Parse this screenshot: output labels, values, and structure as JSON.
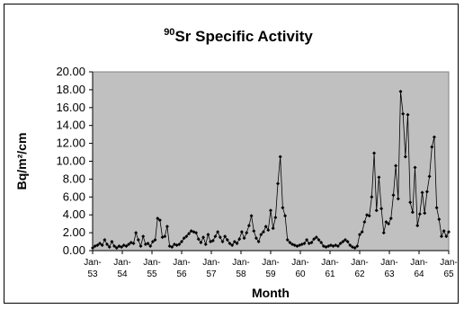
{
  "chart_data": {
    "type": "line",
    "title": {
      "superscript": "90",
      "text": "Sr Specific Activity"
    },
    "xlabel": "Month",
    "ylabel": "Bq/m²/cm",
    "ylim": [
      0,
      20
    ],
    "y_ticks": [
      "0.00",
      "2.00",
      "4.00",
      "6.00",
      "8.00",
      "10.00",
      "12.00",
      "14.00",
      "16.00",
      "18.00",
      "20.00"
    ],
    "x_ticks": [
      {
        "top": "Jan-",
        "bottom": "53"
      },
      {
        "top": "Jan-",
        "bottom": "54"
      },
      {
        "top": "Jan-",
        "bottom": "55"
      },
      {
        "top": "Jan-",
        "bottom": "56"
      },
      {
        "top": "Jan-",
        "bottom": "57"
      },
      {
        "top": "Jan-",
        "bottom": "58"
      },
      {
        "top": "Jan-",
        "bottom": "59"
      },
      {
        "top": "Jan-",
        "bottom": "60"
      },
      {
        "top": "Jan-",
        "bottom": "61"
      },
      {
        "top": "Jan-",
        "bottom": "62"
      },
      {
        "top": "Jan-",
        "bottom": "63"
      },
      {
        "top": "Jan-",
        "bottom": "64"
      },
      {
        "top": "Jan-",
        "bottom": "65"
      }
    ],
    "x_start": "Jan-53",
    "x_end": "Jan-65",
    "grid": false,
    "plot_background": "#c0c0c0",
    "line_color": "#000000",
    "marker": "diamond",
    "series": [
      {
        "values": [
          0.3,
          0.5,
          0.6,
          0.8,
          0.6,
          1.2,
          0.7,
          0.4,
          1.0,
          0.5,
          0.3,
          0.5,
          0.4,
          0.6,
          0.5,
          0.7,
          0.9,
          0.8,
          2.0,
          1.2,
          0.5,
          1.6,
          0.7,
          0.8,
          0.5,
          1.0,
          1.2,
          3.6,
          3.4,
          1.5,
          1.6,
          2.7,
          0.5,
          0.4,
          0.7,
          0.6,
          0.7,
          1.0,
          1.4,
          1.6,
          1.9,
          2.2,
          2.1,
          2.0,
          1.3,
          0.9,
          1.5,
          0.7,
          1.8,
          1.0,
          1.1,
          1.6,
          2.1,
          1.5,
          1.0,
          1.6,
          1.2,
          0.8,
          0.6,
          1.0,
          0.8,
          1.3,
          2.1,
          1.4,
          2.0,
          2.8,
          3.9,
          2.2,
          1.4,
          1.0,
          1.8,
          2.1,
          2.7,
          2.3,
          4.5,
          2.5,
          3.7,
          7.5,
          10.5,
          4.8,
          3.9,
          1.2,
          0.9,
          0.7,
          0.6,
          0.5,
          0.6,
          0.7,
          0.8,
          1.2,
          0.8,
          0.9,
          1.3,
          1.5,
          1.2,
          0.9,
          0.5,
          0.4,
          0.5,
          0.6,
          0.5,
          0.6,
          0.5,
          0.8,
          1.0,
          1.2,
          1.0,
          0.6,
          0.4,
          0.3,
          0.5,
          1.8,
          2.1,
          3.2,
          4.0,
          3.9,
          6.0,
          10.9,
          4.5,
          8.2,
          4.7,
          2.0,
          3.2,
          3.0,
          3.6,
          6.2,
          9.5,
          5.8,
          17.8,
          15.3,
          10.5,
          15.2,
          5.4,
          4.3,
          9.3,
          2.8,
          4.1,
          6.5,
          4.2,
          6.6,
          8.3,
          11.6,
          12.7,
          4.8,
          3.5,
          1.6,
          2.2,
          1.6,
          2.1
        ]
      }
    ]
  }
}
